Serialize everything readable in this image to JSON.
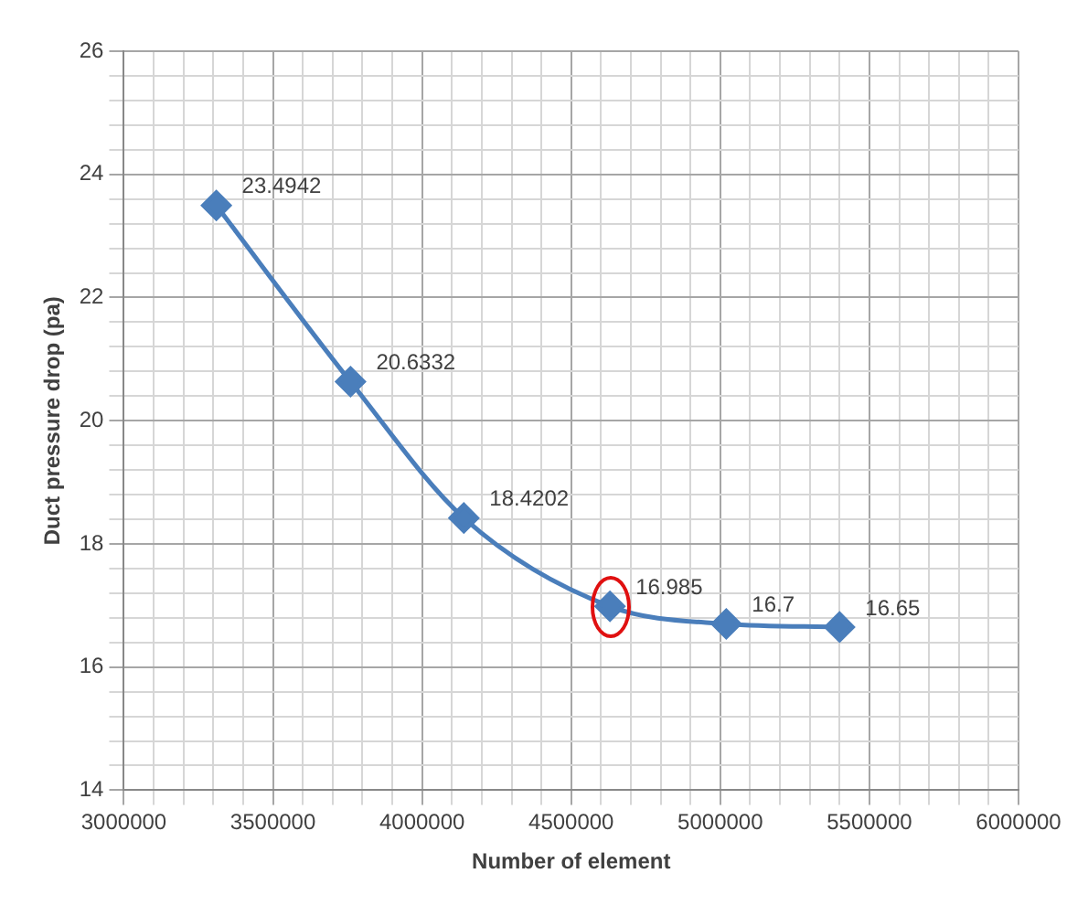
{
  "chart_data": {
    "type": "line",
    "xlabel": "Number of element",
    "ylabel": "Duct pressure drop (pa)",
    "x": [
      3310000,
      3760000,
      4140000,
      4630000,
      5020000,
      5400000
    ],
    "series": [
      {
        "color": "#4a7ebb",
        "values": [
          23.4942,
          20.6332,
          18.4202,
          16.985,
          16.7,
          16.65
        ]
      }
    ],
    "xlim": [
      3000000,
      6000000
    ],
    "xticks": [
      3000000,
      {
        "value": 3100000,
        "label": null
      },
      {
        "value": 3200000,
        "label": null
      },
      {
        "value": 3300000,
        "label": null
      },
      {
        "value": 3400000,
        "label": null
      },
      3500000,
      {
        "value": 3600000,
        "label": null
      },
      {
        "value": 3700000,
        "label": null
      },
      {
        "value": 3800000,
        "label": null
      },
      {
        "value": 3900000,
        "label": null
      },
      4000000,
      {
        "value": 4100000,
        "label": null
      },
      {
        "value": 4200000,
        "label": null
      },
      {
        "value": 4300000,
        "label": null
      },
      {
        "value": 4400000,
        "label": null
      },
      4500000,
      {
        "value": 4600000,
        "label": null
      },
      {
        "value": 4700000,
        "label": null
      },
      {
        "value": 4800000,
        "label": null
      },
      {
        "value": 4900000,
        "label": null
      },
      5000000,
      {
        "value": 5100000,
        "label": null
      },
      {
        "value": 5200000,
        "label": null
      },
      {
        "value": 5300000,
        "label": null
      },
      {
        "value": 5400000,
        "label": null
      },
      5500000,
      {
        "value": 5600000,
        "label": null
      },
      {
        "value": 5700000,
        "label": null
      },
      {
        "value": 5800000,
        "label": null
      },
      {
        "value": 5900000,
        "label": null
      },
      6000000
    ],
    "ylim": [
      14,
      26
    ],
    "yticks": [
      14,
      {
        "value": 14.4,
        "label": null
      },
      {
        "value": 14.8,
        "label": null
      },
      {
        "value": 15.2,
        "label": null
      },
      {
        "value": 15.6,
        "label": null
      },
      16,
      {
        "value": 16.4,
        "label": null
      },
      {
        "value": 16.8,
        "label": null
      },
      {
        "value": 17.2,
        "label": null
      },
      {
        "value": 17.6,
        "label": null
      },
      18,
      {
        "value": 18.4,
        "label": null
      },
      {
        "value": 18.8,
        "label": null
      },
      {
        "value": 19.2,
        "label": null
      },
      {
        "value": 19.6,
        "label": null
      },
      20,
      {
        "value": 20.4,
        "label": null
      },
      {
        "value": 20.8,
        "label": null
      },
      {
        "value": 21.2,
        "label": null
      },
      {
        "value": 21.6,
        "label": null
      },
      22,
      {
        "value": 22.4,
        "label": null
      },
      {
        "value": 22.8,
        "label": null
      },
      {
        "value": 23.2,
        "label": null
      },
      {
        "value": 23.6,
        "label": null
      },
      24,
      {
        "value": 24.4,
        "label": null
      },
      {
        "value": 24.8,
        "label": null
      },
      {
        "value": 25.2,
        "label": null
      },
      {
        "value": 25.6,
        "label": null
      },
      26
    ],
    "grid": true,
    "marker": "diamond",
    "line_style": "solid",
    "data_labels": true
  }
}
